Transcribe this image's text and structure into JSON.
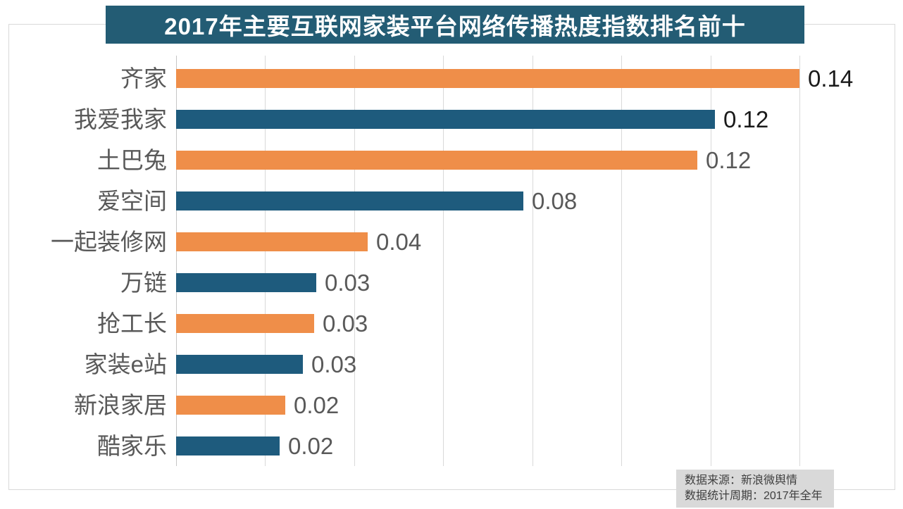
{
  "title": {
    "text": "2017年主要互联网家装平台网络传播热度指数排名前十",
    "bg_color": "#235C74",
    "text_color": "#FFFFFF"
  },
  "source": {
    "line1": "数据来源：新浪微舆情",
    "line2": "数据统计周期：2017年全年"
  },
  "chart_data": {
    "type": "bar",
    "orientation": "horizontal",
    "title": "2017年主要互联网家装平台网络传播热度指数排名前十",
    "categories": [
      "齐家",
      "我爱我家",
      "土巴兔",
      "爱空间",
      "一起装修网",
      "万链",
      "抢工长",
      "家装e站",
      "新浪家居",
      "酷家乐"
    ],
    "values": [
      0.14,
      0.121,
      0.117,
      0.078,
      0.043,
      0.0315,
      0.031,
      0.0285,
      0.0245,
      0.0233
    ],
    "value_labels": [
      "0.14",
      "0.12",
      "0.12",
      "0.08",
      "0.04",
      "0.03",
      "0.03",
      "0.03",
      "0.02",
      "0.02"
    ],
    "bar_colors": [
      "#EF8E49",
      "#1E5B7D",
      "#EF8E49",
      "#1E5B7D",
      "#EF8E49",
      "#1E5B7D",
      "#EF8E49",
      "#1E5B7D",
      "#EF8E49",
      "#1E5B7D"
    ],
    "value_label_colors": [
      "#1a1a1a",
      "#1a1a1a",
      "#595959",
      "#595959",
      "#595959",
      "#595959",
      "#595959",
      "#595959",
      "#595959",
      "#595959"
    ],
    "xlabel": "",
    "ylabel": "",
    "axis": {
      "min": 0,
      "max": 0.16,
      "tick_step": 0.02,
      "ticks": [
        0,
        0.02,
        0.04,
        0.06,
        0.08,
        0.1,
        0.12,
        0.14
      ],
      "tick_labels_visible": false
    },
    "grid": true,
    "legend": false,
    "colors": {
      "orange": "#EF8E49",
      "blue": "#1E5B7D",
      "grid": "#D9D9D9",
      "category_text": "#595959"
    }
  }
}
